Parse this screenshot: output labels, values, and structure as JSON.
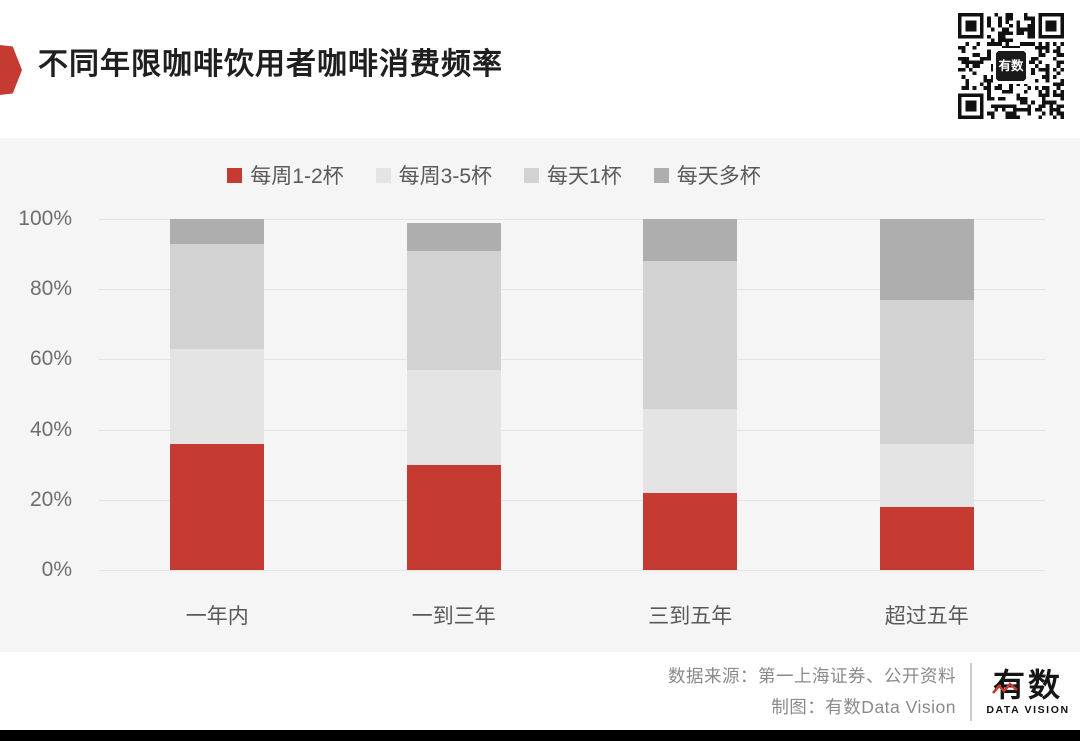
{
  "header": {
    "title": "不同年限咖啡饮用者咖啡消费频率",
    "accent_color": "#c53b32",
    "qr_center_label": "有数"
  },
  "chart_data": {
    "type": "bar",
    "stacked": true,
    "title": "不同年限咖啡饮用者咖啡消费频率",
    "categories": [
      "一年内",
      "一到三年",
      "三到五年",
      "超过五年"
    ],
    "series": [
      {
        "name": "每周1-2杯",
        "color": "#c53b32",
        "values": [
          36,
          30,
          22,
          18
        ]
      },
      {
        "name": "每周3-5杯",
        "color": "#e4e4e4",
        "values": [
          27,
          27,
          24,
          18
        ]
      },
      {
        "name": "每天1杯",
        "color": "#d2d2d2",
        "values": [
          30,
          34,
          42,
          41
        ]
      },
      {
        "name": "每天多杯",
        "color": "#aeaeae",
        "values": [
          7,
          8,
          12,
          23
        ]
      }
    ],
    "tick_values": [
      0,
      20,
      40,
      60,
      80,
      100
    ],
    "tick_format": "percent",
    "ylim": [
      0,
      100
    ],
    "grid": true,
    "legend_position": "top",
    "plot_background": "#f5f5f5"
  },
  "footer": {
    "source_line": "数据来源：第一上海证券、公开资料",
    "credit_line": "制图：有数Data Vision",
    "logo_text": "有数",
    "logo_subtext": "DATA VISION"
  }
}
